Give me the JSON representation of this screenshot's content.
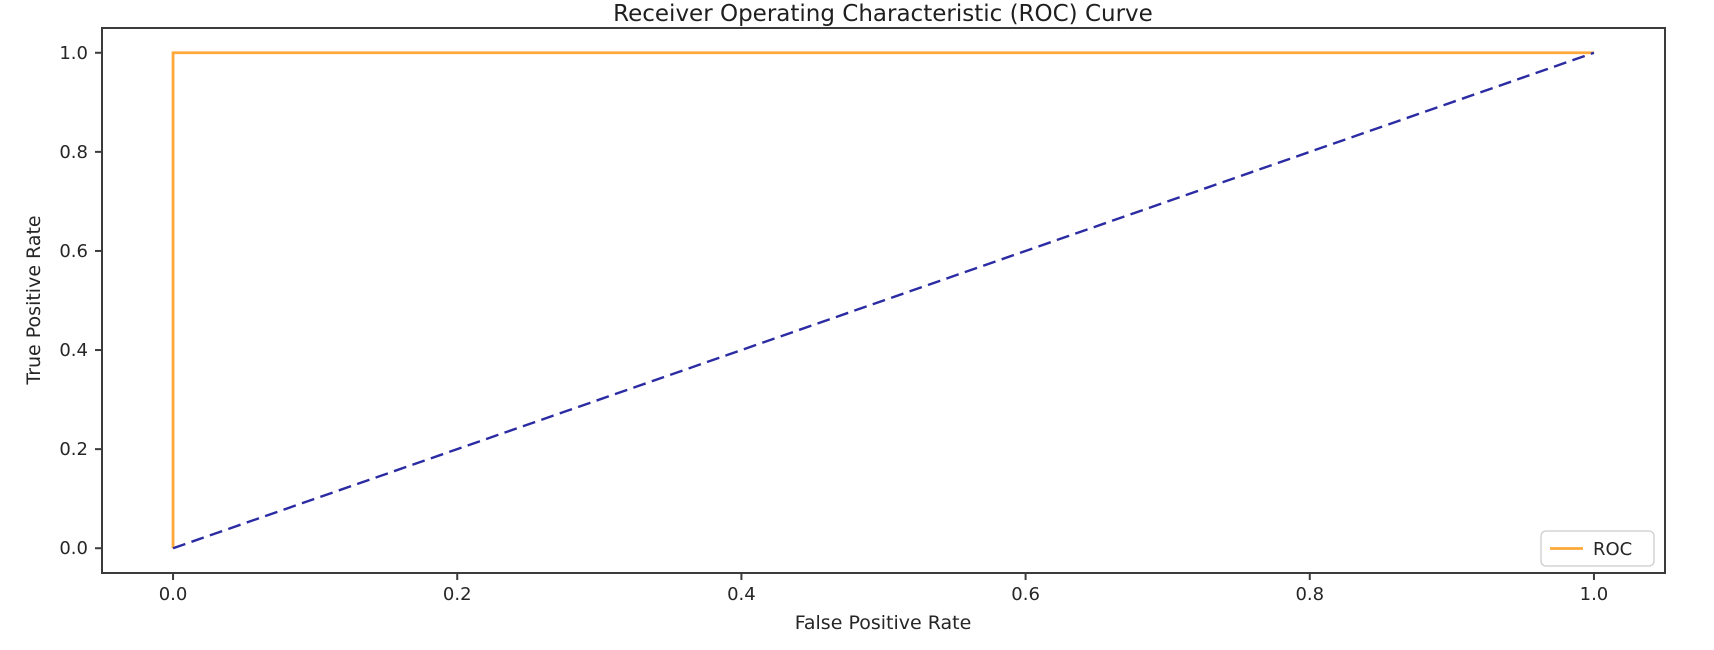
{
  "figure": {
    "background_color": "#ffffff"
  },
  "chart_data": {
    "type": "line",
    "title": "Receiver Operating Characteristic (ROC) Curve",
    "xlabel": "False Positive Rate",
    "ylabel": "True Positive Rate",
    "xlim": [
      -0.05,
      1.05
    ],
    "ylim": [
      -0.05,
      1.05
    ],
    "x_ticks": [
      0.0,
      0.2,
      0.4,
      0.6,
      0.8,
      1.0
    ],
    "y_ticks": [
      0.0,
      0.2,
      0.4,
      0.6,
      0.8,
      1.0
    ],
    "grid": false,
    "series": [
      {
        "name": "ROC",
        "x": [
          0.0,
          0.0,
          1.0
        ],
        "y": [
          0.0,
          1.0,
          1.0
        ],
        "color": "#ffa93a",
        "line_style": "solid",
        "line_width": 2.8
      },
      {
        "name": "chance-diagonal",
        "x": [
          0.0,
          1.0
        ],
        "y": [
          0.0,
          1.0
        ],
        "color": "#2b2ba3",
        "line_style": "dashed",
        "line_width": 2.4
      }
    ],
    "legend": {
      "position": "lower-right",
      "entries": [
        {
          "label": "ROC",
          "color": "#ffa93a"
        }
      ]
    },
    "axis_color": "#3b3b3b",
    "tick_label_color": "#262626"
  }
}
